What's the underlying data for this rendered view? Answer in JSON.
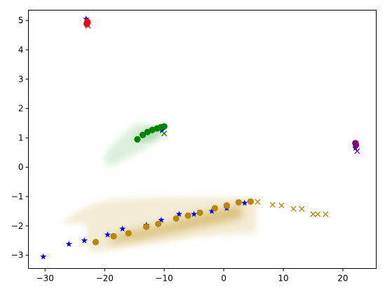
{
  "chart_data": {
    "type": "scatter",
    "title": "",
    "xlabel": "",
    "ylabel": "",
    "xlim": [
      -32.8,
      25.6
    ],
    "ylim": [
      -3.45,
      5.35
    ],
    "xticks": [
      -30,
      -20,
      -10,
      0,
      10,
      20
    ],
    "yticks": [
      -3,
      -2,
      -1,
      0,
      1,
      2,
      3,
      4,
      5
    ],
    "grid": false,
    "legend": false,
    "density_regions": [
      {
        "color": "#b8860b",
        "polygon": [
          [
            -27,
            -1.9
          ],
          [
            -26,
            -1.7
          ],
          [
            -24,
            -1.45
          ],
          [
            -22,
            -1.25
          ],
          [
            -19,
            -1.1
          ],
          [
            -15,
            -1.05
          ],
          [
            -10,
            -1.03
          ],
          [
            -5,
            -1.02
          ],
          [
            0,
            -1.02
          ],
          [
            5,
            -1.05
          ],
          [
            5.5,
            -1.2
          ],
          [
            5.5,
            -2.25
          ],
          [
            0,
            -2.3
          ],
          [
            -5,
            -2.4
          ],
          [
            -10,
            -2.55
          ],
          [
            -15,
            -2.7
          ],
          [
            -20,
            -2.85
          ],
          [
            -22,
            -2.9
          ],
          [
            -23,
            -2.65
          ],
          [
            -23,
            -1.95
          ]
        ],
        "core": [
          [
            -19,
            -2.35
          ],
          [
            -15,
            -2.15
          ],
          [
            -10,
            -1.95
          ],
          [
            -5,
            -1.65
          ],
          [
            0,
            -1.4
          ],
          [
            3,
            -1.25
          ],
          [
            3,
            -1.75
          ],
          [
            -2,
            -1.95
          ],
          [
            -8,
            -2.2
          ],
          [
            -14,
            -2.45
          ],
          [
            -19,
            -2.6
          ]
        ]
      },
      {
        "color": "#2ca02c",
        "polygon": [
          [
            -20,
            0.1
          ],
          [
            -19.8,
            0.5
          ],
          [
            -17,
            1.1
          ],
          [
            -15,
            1.45
          ],
          [
            -10,
            1.45
          ],
          [
            -10.5,
            1.0
          ],
          [
            -13,
            0.65
          ],
          [
            -16,
            0.35
          ],
          [
            -18,
            0.1
          ]
        ],
        "core": [
          [
            -15,
            0.95
          ],
          [
            -13,
            1.2
          ],
          [
            -11,
            1.35
          ],
          [
            -10.2,
            1.3
          ],
          [
            -11.5,
            1.05
          ],
          [
            -13.5,
            0.9
          ]
        ]
      }
    ],
    "series": [
      {
        "marker": "star",
        "color": "#0000ff",
        "points": [
          [
            -30.3,
            -3.05
          ],
          [
            -26,
            -2.62
          ],
          [
            -23.4,
            -2.5
          ],
          [
            -19.5,
            -2.3
          ],
          [
            -17,
            -2.1
          ],
          [
            -13,
            -1.97
          ],
          [
            -10.5,
            -1.8
          ],
          [
            -7.5,
            -1.6
          ],
          [
            -5,
            -1.6
          ],
          [
            -2,
            -1.5
          ],
          [
            0.5,
            -1.4
          ],
          [
            3.5,
            -1.22
          ],
          [
            -23.1,
            5.05
          ],
          [
            -10.4,
            1.25
          ],
          [
            22.1,
            0.65
          ]
        ]
      },
      {
        "marker": "circle",
        "color": "#b8860b",
        "points": [
          [
            -21.5,
            -2.55
          ],
          [
            -18.5,
            -2.35
          ],
          [
            -16,
            -2.25
          ],
          [
            -13,
            -2.03
          ],
          [
            -11,
            -1.93
          ],
          [
            -8,
            -1.75
          ],
          [
            -6,
            -1.65
          ],
          [
            -4,
            -1.55
          ],
          [
            -1.5,
            -1.4
          ],
          [
            0.5,
            -1.3
          ],
          [
            2.5,
            -1.2
          ],
          [
            4.5,
            -1.17
          ]
        ]
      },
      {
        "marker": "x",
        "color": "#b8860b",
        "points": [
          [
            5.7,
            -1.18
          ],
          [
            8.2,
            -1.28
          ],
          [
            9.7,
            -1.3
          ],
          [
            11.7,
            -1.42
          ],
          [
            13.1,
            -1.42
          ],
          [
            15,
            -1.6
          ],
          [
            15.8,
            -1.6
          ],
          [
            17.1,
            -1.6
          ]
        ]
      },
      {
        "marker": "circle",
        "color": "#008000",
        "points": [
          [
            -14.5,
            0.95
          ],
          [
            -13.6,
            1.1
          ],
          [
            -12.8,
            1.2
          ],
          [
            -12,
            1.27
          ],
          [
            -11.2,
            1.32
          ],
          [
            -10.6,
            1.36
          ],
          [
            -10,
            1.39
          ]
        ]
      },
      {
        "marker": "x",
        "color": "#008000",
        "points": [
          [
            -10,
            1.15
          ]
        ]
      },
      {
        "marker": "circle",
        "color": "#ff0000",
        "points": [
          [
            -23,
            4.88
          ],
          [
            -22.9,
            4.95
          ]
        ]
      },
      {
        "marker": "x",
        "color": "#ff0000",
        "points": [
          [
            -22.8,
            4.82
          ]
        ]
      },
      {
        "marker": "circle",
        "color": "#800080",
        "points": [
          [
            22.1,
            0.82
          ],
          [
            22.2,
            0.76
          ]
        ]
      },
      {
        "marker": "x",
        "color": "#800080",
        "points": [
          [
            22.4,
            0.55
          ]
        ]
      }
    ]
  }
}
